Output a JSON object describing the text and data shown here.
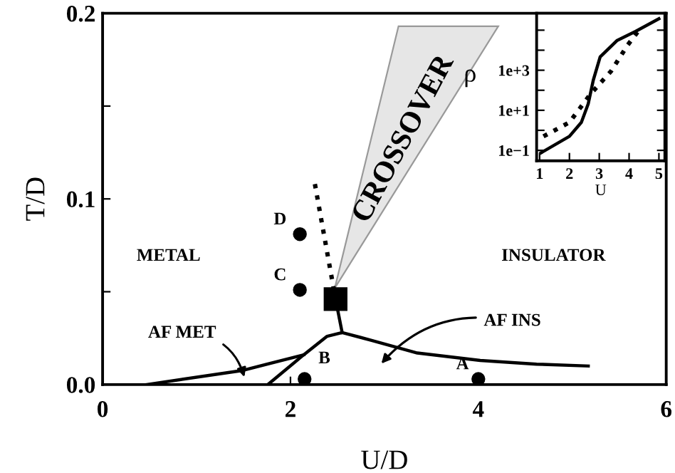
{
  "chart_data": [
    {
      "type": "line",
      "xlabel": "U/D",
      "ylabel": "T/D",
      "xlim": [
        0,
        6
      ],
      "ylim": [
        0,
        0.2
      ],
      "xticks": [
        0,
        2,
        4,
        6
      ],
      "yticks": [
        {
          "value": 0,
          "label": "0.0"
        },
        {
          "value": 0.05,
          "label": null
        },
        {
          "value": 0.1,
          "label": "0.1"
        },
        {
          "value": 0.15,
          "label": null
        },
        {
          "value": 0.2,
          "label": "0.2"
        }
      ],
      "series": [
        {
          "color": "#000000",
          "line_style": "dotted",
          "x": [
            2.26,
            2.48
          ],
          "values": [
            0.108,
            0.046
          ]
        },
        {
          "color": "#000000",
          "line_style": "solid",
          "x": [
            2.48,
            2.55
          ],
          "values": [
            0.046,
            0.028
          ]
        },
        {
          "color": "#000000",
          "line_style": "solid",
          "x": [
            1.76,
            2.14,
            2.39,
            2.55,
            2.85,
            3.35,
            4.02,
            4.62,
            5.17
          ],
          "values": [
            0,
            0.016,
            0.026,
            0.028,
            0.024,
            0.017,
            0.013,
            0.011,
            0.01
          ]
        },
        {
          "color": "#000000",
          "line_style": "solid",
          "x": [
            0.47,
            1.48,
            2.14
          ],
          "values": [
            0,
            0.0075,
            0.016
          ]
        },
        {
          "type": "scatter",
          "color": "#000000",
          "marker": "circle",
          "x": [
            4.0,
            2.15,
            2.1,
            2.1
          ],
          "values": [
            0.003,
            0.003,
            0.051,
            0.081
          ]
        },
        {
          "type": "scatter",
          "color": "#000000",
          "marker": "square",
          "x": [
            2.48
          ],
          "values": [
            0.046
          ]
        }
      ],
      "annotations": [
        "METAL",
        "INSULATOR",
        {
          "text": "AF MET",
          "x": 1.52,
          "y": 0.002
        },
        "AF INS",
        {
          "text": "A",
          "x": 4.0,
          "y": 0.003
        },
        {
          "text": "B",
          "x": 2.15,
          "y": 0.003
        },
        {
          "text": "C",
          "x": 2.1,
          "y": 0.051
        },
        {
          "text": "D",
          "x": 2.1,
          "y": 0.081
        },
        "CROSSOVER"
      ]
    },
    {
      "type": "line",
      "xlabel": "U",
      "ylabel": "ρ",
      "log": "y",
      "xlim": [
        0.9,
        5.2
      ],
      "ylim": [
        0.03,
        700000
      ],
      "xticks": [
        1,
        2,
        3,
        4,
        5
      ],
      "yticks": [
        {
          "value": 0.1,
          "label": "1e−1"
        },
        {
          "value": 1,
          "label": null
        },
        {
          "value": 10,
          "label": "1e+1"
        },
        {
          "value": 100,
          "label": null
        },
        {
          "value": 1000,
          "label": "1e+3"
        },
        {
          "value": 10000,
          "label": null
        },
        {
          "value": 100000,
          "label": null
        }
      ],
      "grid": false,
      "series": [
        {
          "color": "#000000",
          "line_style": "solid",
          "x": [
            1.05,
            2.0,
            2.4,
            2.63,
            2.8,
            3.03,
            3.59,
            4.22,
            5.0
          ],
          "values": [
            0.076,
            0.5,
            2.5,
            21,
            320,
            4600,
            30000,
            87000,
            370000
          ]
        },
        {
          "color": "#000000",
          "line_style": "dotted",
          "x": [
            1.13,
            2.0,
            2.7,
            3.4,
            3.94,
            4.3
          ],
          "values": [
            0.5,
            2.5,
            63,
            910,
            17000,
            87000
          ]
        }
      ]
    }
  ]
}
